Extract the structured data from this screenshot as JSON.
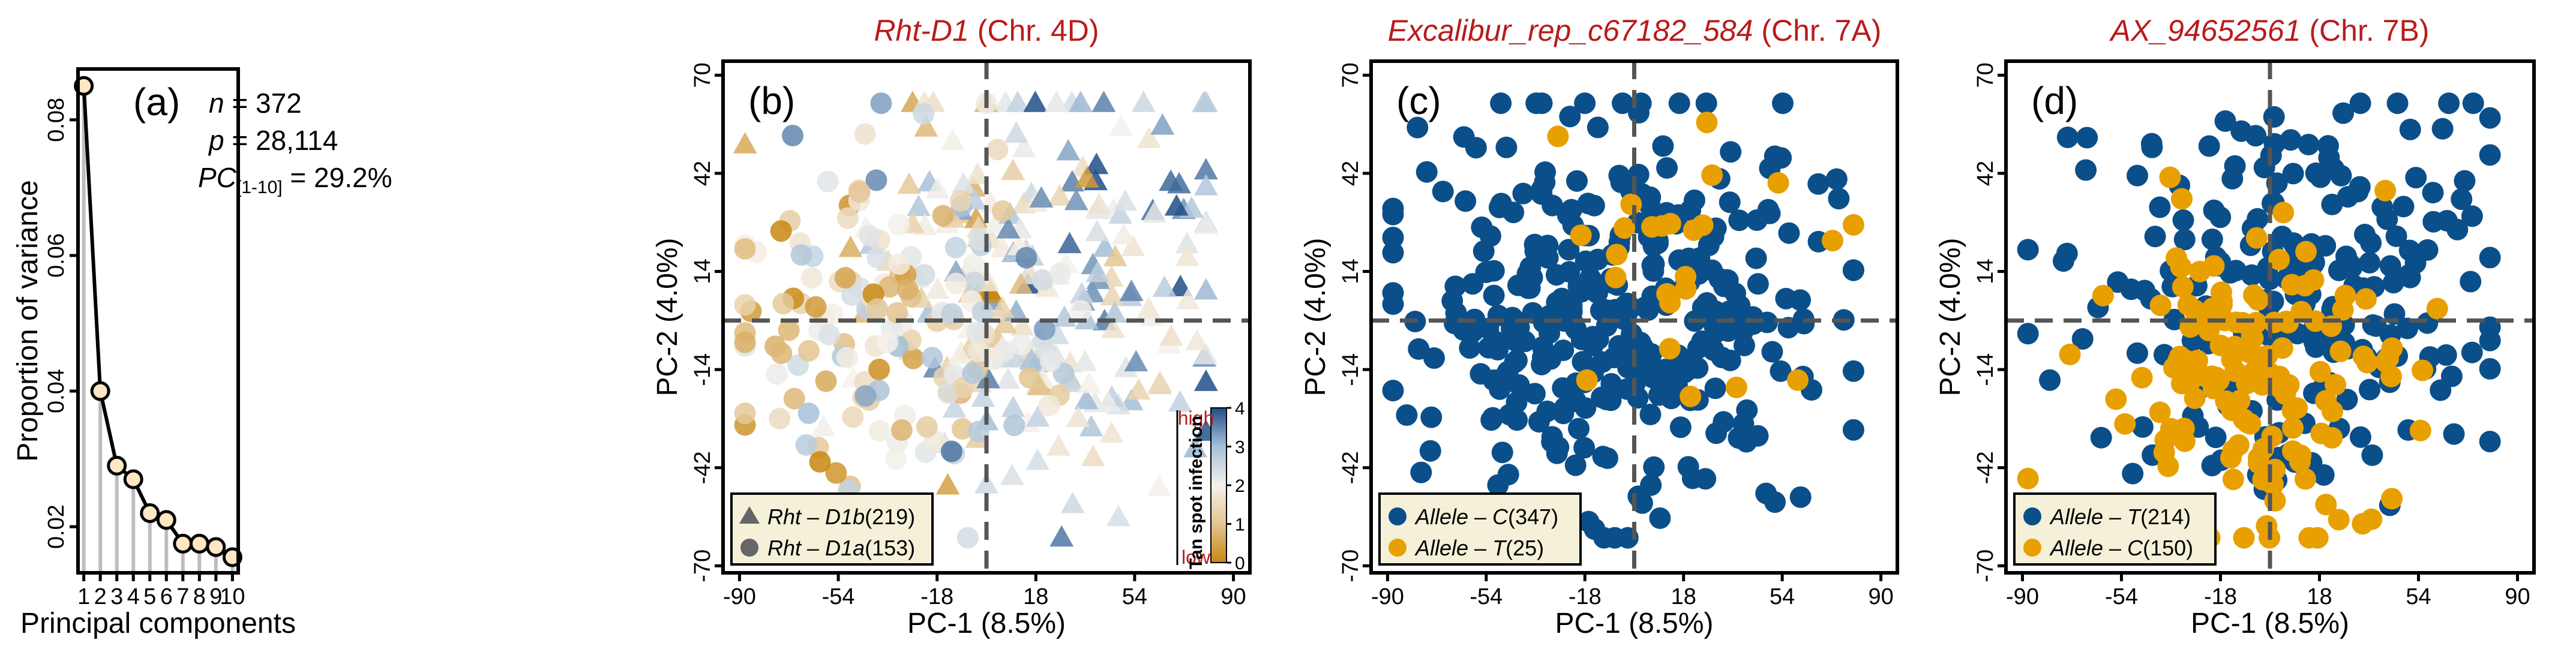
{
  "figure": {
    "colors": {
      "axis": "#000000",
      "dash": "#555555",
      "title_red": "#b81c1c",
      "blue": "#0b4f8a",
      "orange": "#e8a000",
      "stem": "#bdbdbd",
      "scree_point_fill": "#fde7c4",
      "legend_fill": "#f5f0d8"
    }
  },
  "chart_data": [
    {
      "id": "a",
      "type": "line",
      "panel_label": "(a)",
      "xlabel": "Principal components",
      "ylabel": "Proportion of variance",
      "x": [
        1,
        2,
        3,
        4,
        5,
        6,
        7,
        8,
        9,
        10
      ],
      "values": [
        0.085,
        0.04,
        0.029,
        0.027,
        0.022,
        0.021,
        0.0175,
        0.0175,
        0.017,
        0.0155
      ],
      "xlim": [
        0.65,
        10.35
      ],
      "ylim": [
        0.0132,
        0.0875
      ],
      "yticks": [
        0.02,
        0.04,
        0.06,
        0.08
      ],
      "ytick_labels": [
        "0.02",
        "0.04",
        "0.06",
        "0.08"
      ],
      "xticks": [
        1,
        2,
        3,
        4,
        5,
        6,
        7,
        8,
        9,
        10
      ],
      "xtick_labels": [
        "1",
        "2",
        "3",
        "4",
        "5",
        "6",
        "7",
        "8",
        "9",
        "10"
      ],
      "annotations": [
        {
          "italic": "n",
          "rest": " = 372"
        },
        {
          "italic": "p",
          "rest": " = 28,114"
        },
        {
          "italic": "PC",
          "sub": "[1-10]",
          "rest": " = 29.2%"
        }
      ]
    },
    {
      "id": "b",
      "type": "scatter",
      "panel_label": "(b)",
      "title_italic": "Rht-D1",
      "title_rest": " (Chr. 4D)",
      "xlabel": "PC-1 (8.5%)",
      "ylabel": "PC-2 (4.0%)",
      "xlim": [
        -96,
        96
      ],
      "ylim": [
        -72,
        74
      ],
      "xticks": [
        -90,
        -54,
        -18,
        18,
        54,
        90
      ],
      "xtick_labels": [
        "-90",
        "-54",
        "-18",
        "18",
        "54",
        "90"
      ],
      "yticks": [
        -70,
        -42,
        -14,
        14,
        42,
        70
      ],
      "ytick_labels": [
        "-70",
        "-42",
        "-14",
        "14",
        "42",
        "70"
      ],
      "groups": [
        {
          "name": "Rht-D1b",
          "shape": "triangle",
          "center": [
            22,
            10
          ],
          "spread": [
            32,
            28
          ],
          "n": 219,
          "seed": 11
        },
        {
          "name": "Rht-D1a",
          "shape": "circle",
          "center": [
            -38,
            0
          ],
          "spread": [
            30,
            26
          ],
          "n": 153,
          "seed": 23
        }
      ],
      "legend": [
        {
          "shape": "triangle",
          "label": "Rht – D1b",
          "count": "(219)"
        },
        {
          "shape": "circle",
          "label": "Rht – D1a",
          "count": "(153)"
        }
      ],
      "colorbar": {
        "title": "Tan spot infection",
        "high_label": "high",
        "low_label": "low",
        "ticks": [
          "0",
          "1",
          "2",
          "3",
          "4"
        ],
        "range": [
          0,
          4
        ],
        "stops": [
          "#c8860e",
          "#e3c592",
          "#f4f1ec",
          "#a6c0d8",
          "#1f4e86"
        ]
      }
    },
    {
      "id": "c",
      "type": "scatter",
      "panel_label": "(c)",
      "title_italic": "Excalibur_rep_c67182_584",
      "title_rest": " (Chr. 7A)",
      "xlabel": "PC-1 (8.5%)",
      "ylabel": "PC-2 (4.0%)",
      "xlim": [
        -96,
        96
      ],
      "ylim": [
        -72,
        74
      ],
      "xticks": [
        -90,
        -54,
        -18,
        18,
        54,
        90
      ],
      "xtick_labels": [
        "-90",
        "-54",
        "-18",
        "18",
        "54",
        "90"
      ],
      "yticks": [
        -70,
        -42,
        -14,
        14,
        42,
        70
      ],
      "ytick_labels": [
        "-70",
        "-42",
        "-14",
        "14",
        "42",
        "70"
      ],
      "groups": [
        {
          "name": "Allele-C",
          "color": "blue",
          "center": [
            -4,
            2
          ],
          "spread": [
            38,
            28
          ],
          "n": 347,
          "seed": 37
        },
        {
          "name": "Allele-T",
          "color": "orange",
          "center": [
            30,
            15
          ],
          "spread": [
            30,
            25
          ],
          "n": 25,
          "seed": 41
        }
      ],
      "legend": [
        {
          "color": "blue",
          "label": "Allele – C",
          "count": "(347)"
        },
        {
          "color": "orange",
          "label": "Allele – T",
          "count": "(25)"
        }
      ]
    },
    {
      "id": "d",
      "type": "scatter",
      "panel_label": "(d)",
      "title_italic": "AX_94652561",
      "title_rest": " (Chr. 7B)",
      "xlabel": "PC-1 (8.5%)",
      "ylabel": "PC-2 (4.0%)",
      "xlim": [
        -96,
        96
      ],
      "ylim": [
        -72,
        74
      ],
      "xticks": [
        -90,
        -54,
        -18,
        18,
        54,
        90
      ],
      "xtick_labels": [
        "-90",
        "-54",
        "-18",
        "18",
        "54",
        "90"
      ],
      "yticks": [
        -70,
        -42,
        -14,
        14,
        42,
        70
      ],
      "ytick_labels": [
        "-70",
        "-42",
        "-14",
        "14",
        "42",
        "70"
      ],
      "groups": [
        {
          "name": "Allele-T",
          "color": "blue",
          "center": [
            8,
            8
          ],
          "spread": [
            38,
            28
          ],
          "n": 214,
          "seed": 53
        },
        {
          "name": "Allele-C",
          "color": "orange",
          "center": [
            -12,
            -18
          ],
          "spread": [
            30,
            24
          ],
          "n": 150,
          "seed": 61
        }
      ],
      "legend": [
        {
          "color": "blue",
          "label": "Allele – T",
          "count": "(214)"
        },
        {
          "color": "orange",
          "label": "Allele – C",
          "count": "(150)"
        }
      ]
    }
  ]
}
